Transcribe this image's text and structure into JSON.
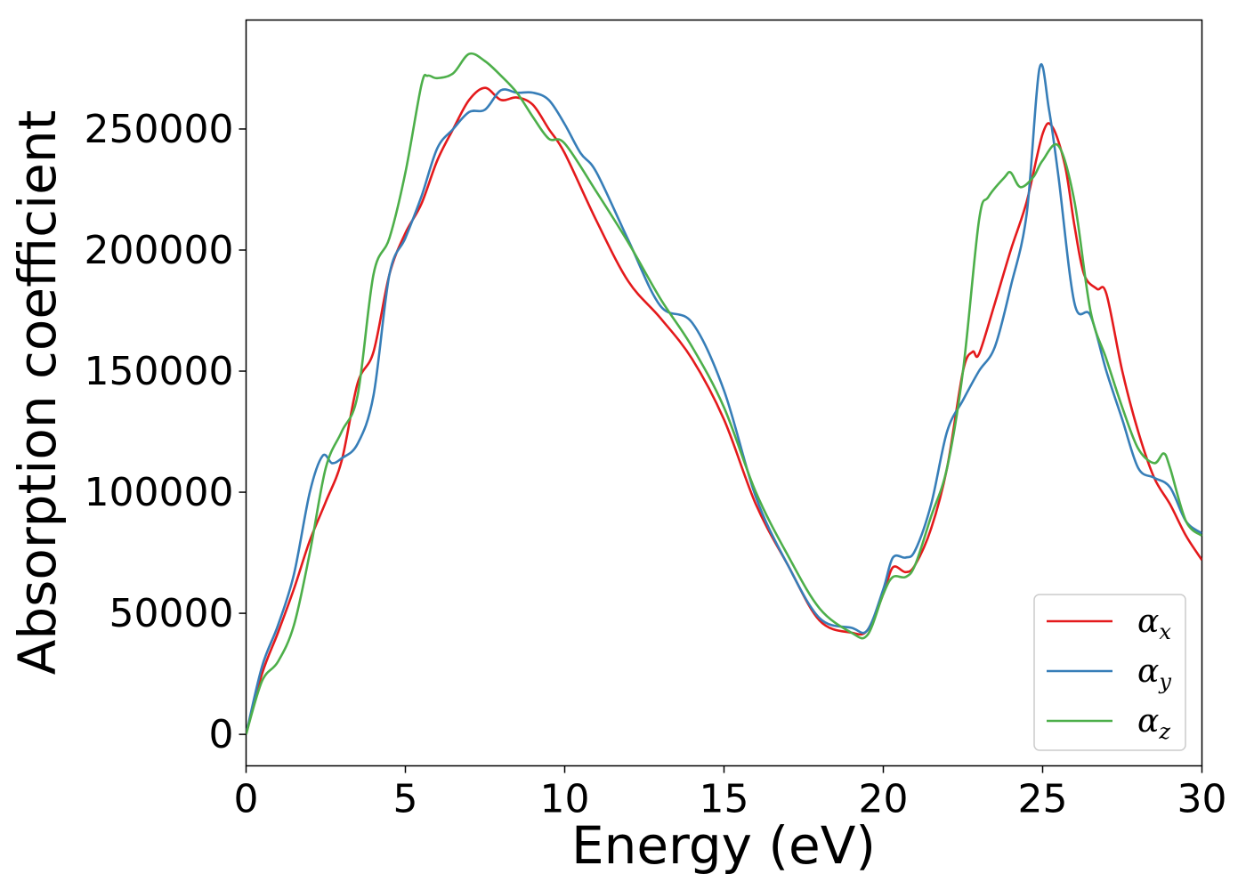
{
  "chart_data": {
    "type": "line",
    "xlabel": "Energy (eV)",
    "ylabel": "Absorption coefficient",
    "xlim": [
      0,
      30
    ],
    "ylim": [
      -13000,
      295000
    ],
    "xticks": [
      0,
      5,
      10,
      15,
      20,
      25,
      30
    ],
    "yticks": [
      0,
      50000,
      100000,
      150000,
      200000,
      250000
    ],
    "grid": false,
    "legend_position": "bottom-right",
    "series": [
      {
        "name": "α",
        "subscript": "x",
        "color": "#e41a1c",
        "x": [
          0,
          0.5,
          1,
          1.5,
          2,
          2.5,
          3,
          3.5,
          4,
          4.5,
          5,
          5.5,
          6,
          6.5,
          7,
          7.5,
          8,
          8.5,
          9,
          9.5,
          10,
          11,
          12,
          13,
          14,
          15,
          16,
          17,
          18,
          19,
          19.5,
          20,
          20.3,
          20.7,
          21,
          21.5,
          22,
          22.5,
          22.8,
          23,
          23.5,
          24,
          24.5,
          25,
          25.3,
          25.7,
          26,
          26.3,
          26.7,
          27,
          27.5,
          28,
          28.5,
          29,
          29.5,
          30
        ],
        "y": [
          0,
          25000,
          42000,
          60000,
          80000,
          96000,
          113000,
          145000,
          158000,
          190000,
          207000,
          219000,
          237000,
          250000,
          262000,
          267000,
          262000,
          263000,
          260000,
          250000,
          240000,
          212000,
          187000,
          172000,
          155000,
          130000,
          95000,
          70000,
          47000,
          42000,
          43000,
          58000,
          69000,
          67000,
          70000,
          85000,
          110000,
          150000,
          158000,
          157000,
          178000,
          200000,
          220000,
          248000,
          251000,
          235000,
          210000,
          190000,
          184000,
          182000,
          150000,
          125000,
          106000,
          95000,
          82000,
          72000
        ]
      },
      {
        "name": "α",
        "subscript": "y",
        "color": "#377eb8",
        "x": [
          0,
          0.5,
          1,
          1.5,
          2,
          2.4,
          2.7,
          3,
          3.5,
          4,
          4.5,
          5,
          5.5,
          6,
          6.5,
          7,
          7.5,
          8,
          8.5,
          9,
          9.5,
          10,
          10.5,
          11,
          12,
          13,
          14,
          15,
          16,
          17,
          18,
          19,
          19.5,
          20,
          20.3,
          20.7,
          21,
          21.5,
          22,
          22.5,
          23,
          23.5,
          24,
          24.5,
          24.9,
          25.2,
          25.5,
          26,
          26.5,
          27,
          27.5,
          28,
          28.5,
          29,
          29.5,
          30
        ],
        "y": [
          0,
          28000,
          45000,
          66000,
          100000,
          115000,
          112000,
          114000,
          120000,
          140000,
          190000,
          205000,
          222000,
          242000,
          250000,
          257000,
          258000,
          266000,
          265000,
          265000,
          262000,
          252000,
          240000,
          232000,
          204000,
          177000,
          170000,
          142000,
          98000,
          70000,
          48000,
          44000,
          43000,
          60000,
          73000,
          73000,
          76000,
          95000,
          125000,
          138000,
          150000,
          160000,
          185000,
          215000,
          275000,
          258000,
          230000,
          178000,
          173000,
          150000,
          130000,
          110000,
          106000,
          102000,
          88000,
          83000
        ]
      },
      {
        "name": "α",
        "subscript": "z",
        "color": "#4daf4a",
        "x": [
          0,
          0.5,
          1,
          1.5,
          2,
          2.5,
          3,
          3.5,
          4,
          4.5,
          5,
          5.5,
          5.7,
          6,
          6.5,
          7,
          7.5,
          8,
          8.5,
          9,
          9.5,
          10,
          11,
          12,
          13,
          14,
          15,
          16,
          17,
          18,
          19,
          19.5,
          20,
          20.3,
          20.7,
          21,
          21.5,
          22,
          22.5,
          23,
          23.3,
          23.8,
          24,
          24.3,
          24.7,
          25,
          25.5,
          26,
          26.5,
          27,
          27.5,
          28,
          28.5,
          28.8,
          29,
          29.5,
          30
        ],
        "y": [
          0,
          22000,
          30000,
          45000,
          75000,
          110000,
          125000,
          140000,
          190000,
          205000,
          232000,
          268000,
          272000,
          271000,
          273000,
          281000,
          278000,
          272000,
          265000,
          255000,
          246000,
          244000,
          224000,
          203000,
          180000,
          160000,
          135000,
          100000,
          74000,
          52000,
          42000,
          41000,
          58000,
          65000,
          65000,
          70000,
          90000,
          110000,
          150000,
          212000,
          222000,
          230000,
          232000,
          226000,
          230000,
          237000,
          243000,
          220000,
          175000,
          155000,
          135000,
          118000,
          112000,
          116000,
          110000,
          88000,
          82000
        ]
      }
    ]
  }
}
